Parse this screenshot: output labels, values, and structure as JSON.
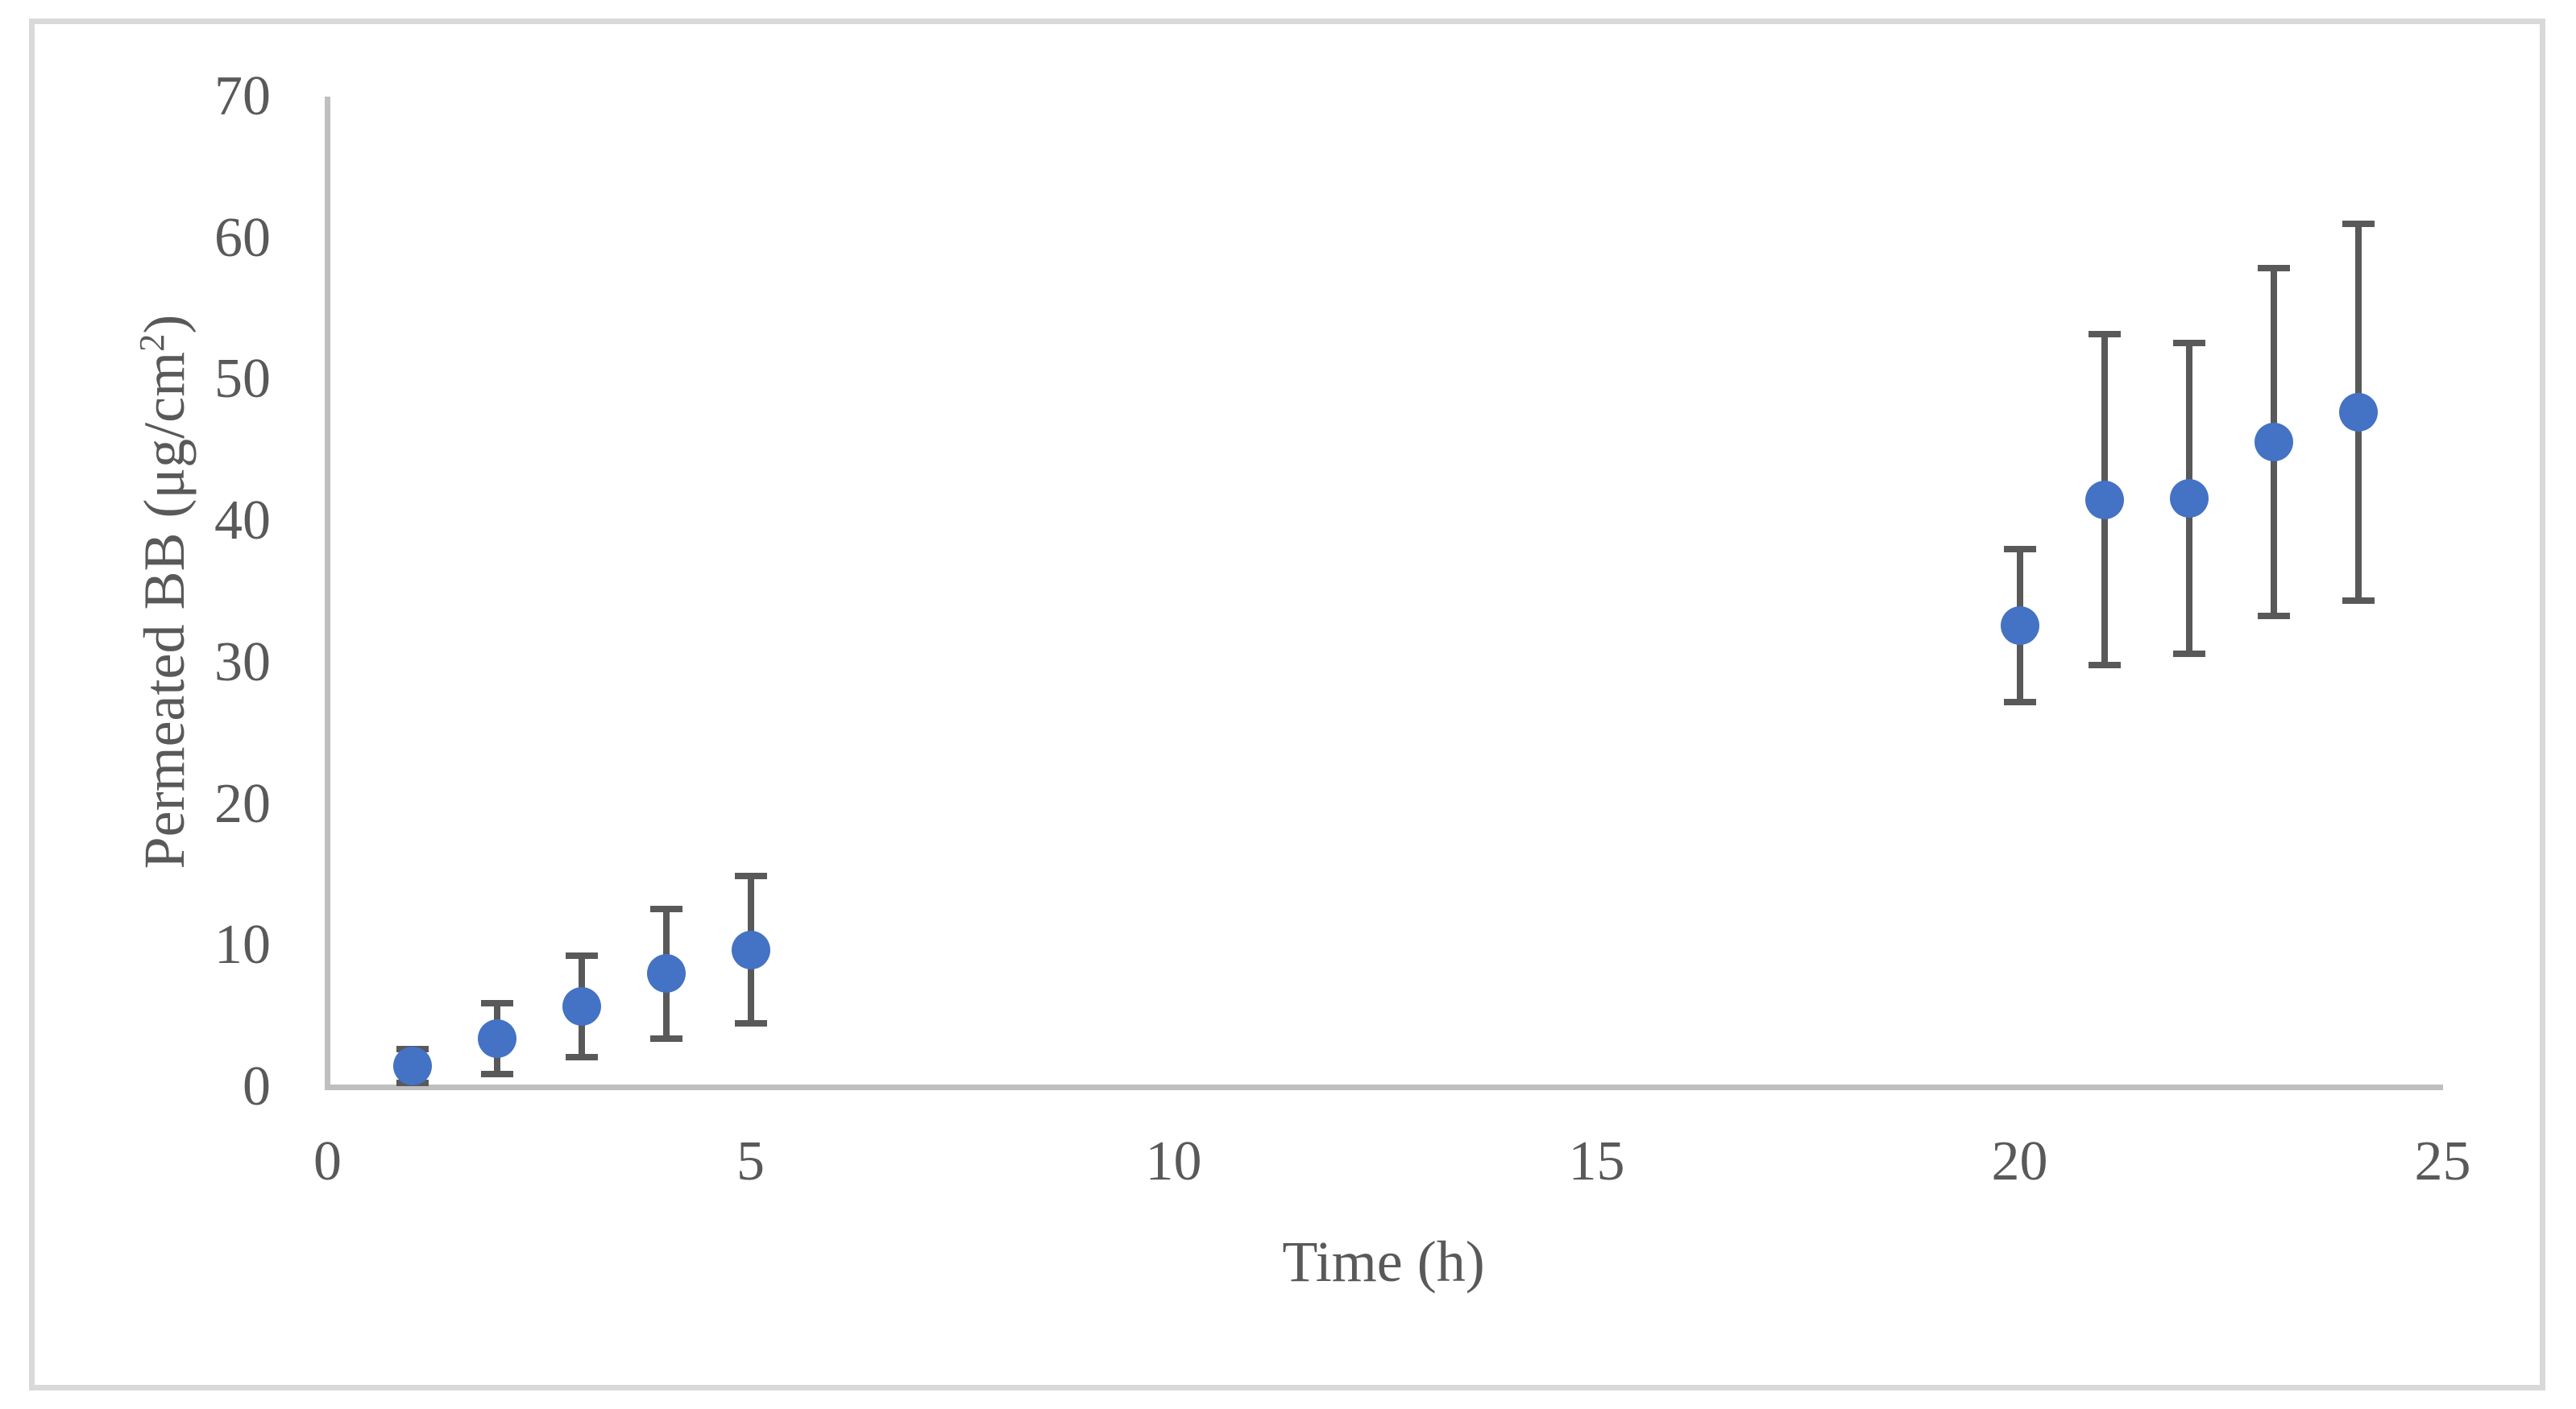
{
  "figure": {
    "background_color": "#ffffff",
    "border_color": "#d9d9d9"
  },
  "chart_data": {
    "type": "scatter",
    "title": "",
    "xlabel": "Time (h)",
    "ylabel": "Permeated BB (μg/cm²)",
    "ylabel_parts": {
      "main": "Permeated BB (μg/cm",
      "sup": "2",
      "end": ")"
    },
    "xlim": [
      0,
      25
    ],
    "ylim": [
      0,
      70
    ],
    "x_ticks": [
      0,
      5,
      10,
      15,
      20,
      25
    ],
    "y_ticks": [
      0,
      10,
      20,
      30,
      40,
      50,
      60,
      70
    ],
    "grid": false,
    "legend": null,
    "colors": {
      "marker": "#4472c4",
      "error_bar": "#595959",
      "axis_line": "#bfbfbf",
      "text": "#595959"
    },
    "series": [
      {
        "name": "Permeated BB",
        "points": [
          {
            "x": 1,
            "y": 1.5,
            "yerr": 1.2
          },
          {
            "x": 2,
            "y": 3.4,
            "yerr": 2.5
          },
          {
            "x": 3,
            "y": 5.7,
            "yerr": 3.6
          },
          {
            "x": 4,
            "y": 8.0,
            "yerr": 4.6
          },
          {
            "x": 5,
            "y": 9.7,
            "yerr": 5.2
          },
          {
            "x": 20,
            "y": 32.6,
            "yerr": 5.4
          },
          {
            "x": 21,
            "y": 41.5,
            "yerr": 11.7
          },
          {
            "x": 22,
            "y": 41.6,
            "yerr": 11.0
          },
          {
            "x": 23,
            "y": 45.6,
            "yerr": 12.3
          },
          {
            "x": 24,
            "y": 47.7,
            "yerr": 13.3
          }
        ]
      }
    ]
  }
}
